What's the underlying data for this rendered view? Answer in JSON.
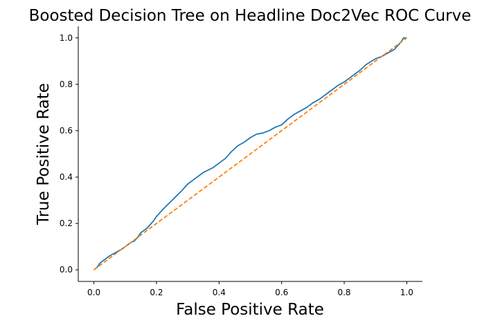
{
  "chart_data": {
    "type": "line",
    "title": "Boosted Decision Tree on Headline Doc2Vec ROC Curve",
    "xlabel": "False Positive Rate",
    "ylabel": "True Positive Rate",
    "xlim": [
      -0.05,
      1.05
    ],
    "ylim": [
      -0.05,
      1.05
    ],
    "x_ticks": [
      0.0,
      0.2,
      0.4,
      0.6,
      0.8,
      1.0
    ],
    "x_tick_labels": [
      "0.0",
      "0.2",
      "0.4",
      "0.6",
      "0.8",
      "1.0"
    ],
    "y_ticks": [
      0.0,
      0.2,
      0.4,
      0.6,
      0.8,
      1.0
    ],
    "y_tick_labels": [
      "0.0",
      "0.2",
      "0.4",
      "0.6",
      "0.8",
      "1.0"
    ],
    "grid": false,
    "legend": "none",
    "spines": [
      "left",
      "bottom"
    ],
    "series": [
      {
        "color": "#1f77b4",
        "style": "solid",
        "x": [
          0.0,
          0.01,
          0.02,
          0.03,
          0.05,
          0.07,
          0.09,
          0.1,
          0.12,
          0.13,
          0.14,
          0.15,
          0.17,
          0.19,
          0.2,
          0.22,
          0.25,
          0.28,
          0.3,
          0.33,
          0.35,
          0.38,
          0.4,
          0.42,
          0.44,
          0.46,
          0.48,
          0.5,
          0.52,
          0.54,
          0.56,
          0.58,
          0.6,
          0.62,
          0.64,
          0.66,
          0.68,
          0.7,
          0.72,
          0.75,
          0.78,
          0.8,
          0.82,
          0.85,
          0.87,
          0.9,
          0.92,
          0.94,
          0.96,
          0.97,
          0.98,
          0.99,
          1.0
        ],
        "y": [
          0.0,
          0.01,
          0.03,
          0.04,
          0.06,
          0.075,
          0.09,
          0.1,
          0.12,
          0.125,
          0.14,
          0.16,
          0.18,
          0.21,
          0.23,
          0.26,
          0.3,
          0.34,
          0.37,
          0.4,
          0.42,
          0.44,
          0.46,
          0.48,
          0.51,
          0.535,
          0.55,
          0.57,
          0.585,
          0.59,
          0.6,
          0.615,
          0.625,
          0.65,
          0.67,
          0.685,
          0.7,
          0.72,
          0.735,
          0.765,
          0.795,
          0.81,
          0.83,
          0.86,
          0.885,
          0.91,
          0.92,
          0.935,
          0.95,
          0.965,
          0.98,
          1.0,
          1.0
        ]
      },
      {
        "color": "#ff7f0e",
        "style": "dashed",
        "x": [
          0.0,
          1.0
        ],
        "y": [
          0.0,
          1.0
        ]
      }
    ]
  }
}
